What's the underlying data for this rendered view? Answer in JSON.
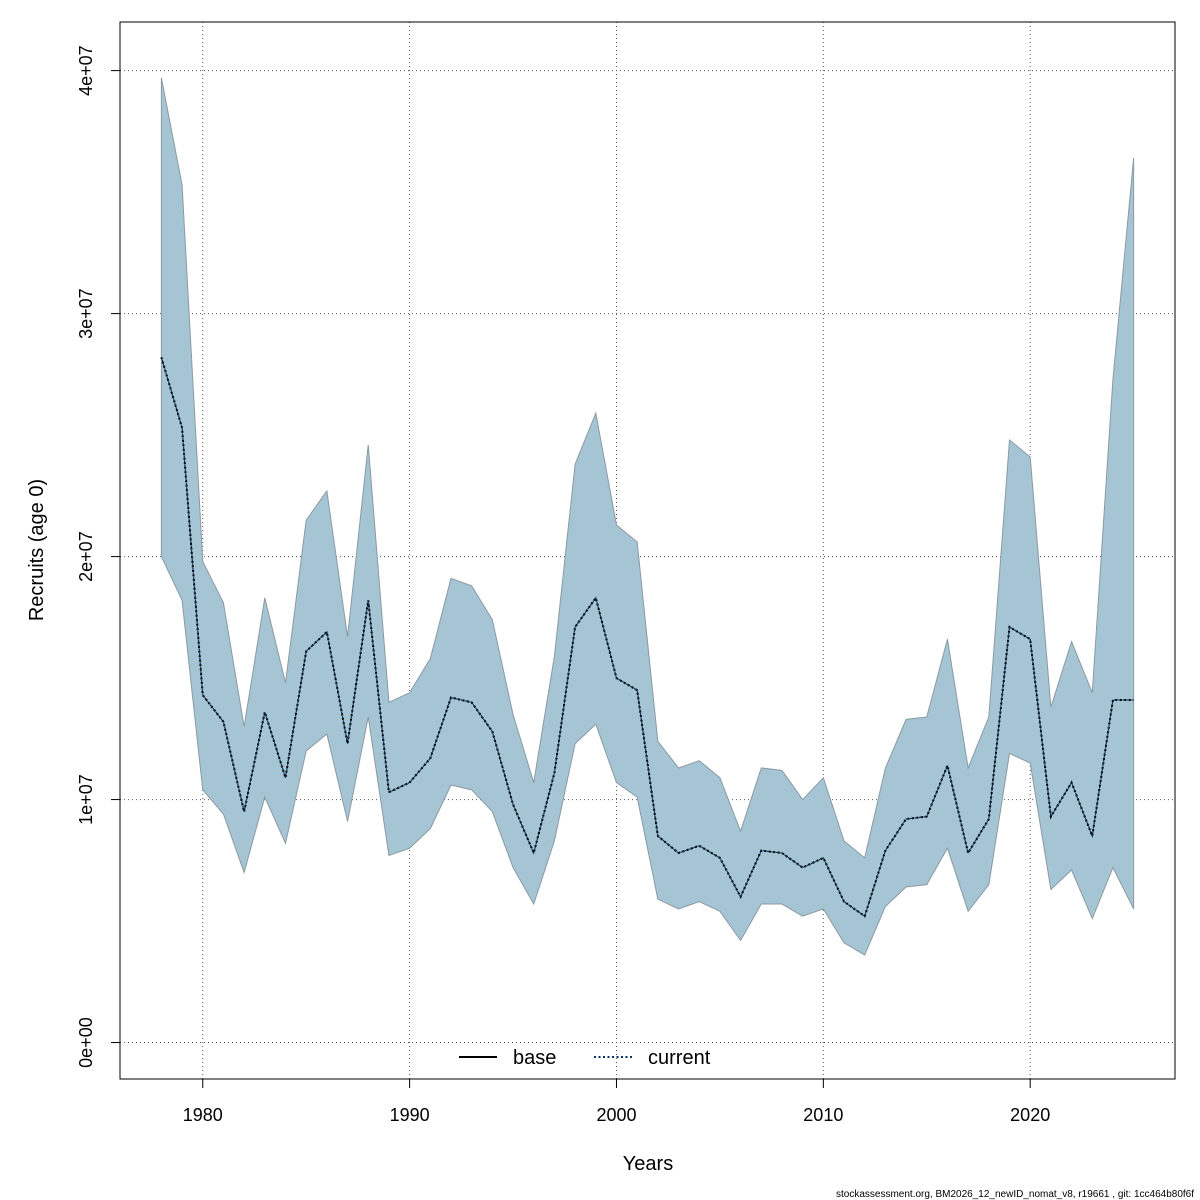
{
  "chart_data": {
    "type": "area",
    "xlabel": "Years",
    "ylabel": "Recruits (age 0)",
    "xlim": [
      1976,
      2027
    ],
    "ylim": [
      -1500000.0,
      42000000.0
    ],
    "x_ticks": [
      1980,
      1990,
      2000,
      2010,
      2020
    ],
    "x_tick_labels": [
      "1980",
      "1990",
      "2000",
      "2010",
      "2020"
    ],
    "y_ticks": [
      0,
      10000000,
      20000000,
      30000000,
      40000000
    ],
    "y_tick_labels": [
      "0e+00",
      "1e+07",
      "2e+07",
      "3e+07",
      "4e+07"
    ],
    "grid": true,
    "legend_position": "bottom",
    "colors": {
      "band_fill": "#a5c4d4",
      "band_edge": "#8c9aa2",
      "current_line": "#003366",
      "base_line": "#000000",
      "grid": "#555555"
    },
    "x": [
      1978,
      1979,
      1980,
      1981,
      1982,
      1983,
      1984,
      1985,
      1986,
      1987,
      1988,
      1989,
      1990,
      1991,
      1992,
      1993,
      1994,
      1995,
      1996,
      1997,
      1998,
      1999,
      2000,
      2001,
      2002,
      2003,
      2004,
      2005,
      2006,
      2007,
      2008,
      2009,
      2010,
      2011,
      2012,
      2013,
      2014,
      2015,
      2016,
      2017,
      2018,
      2019,
      2020,
      2021,
      2022,
      2023,
      2024,
      2025
    ],
    "series": [
      {
        "name": "current",
        "style": "dotted",
        "values": [
          28200000,
          25300000,
          14300000,
          13200000,
          9500000,
          13600000,
          10900000,
          16100000,
          16900000,
          12300000,
          18200000,
          10300000,
          10700000,
          11700000,
          14200000,
          14000000,
          12800000,
          9800000,
          7800000,
          11100000,
          17100000,
          18300000,
          15000000,
          14500000,
          8500000,
          7800000,
          8100000,
          7600000,
          6000000,
          7900000,
          7800000,
          7200000,
          7600000,
          5800000,
          5200000,
          7900000,
          9200000,
          9300000,
          11400000,
          7800000,
          9200000,
          17100000,
          16600000,
          9300000,
          10700000,
          8500000,
          14100000,
          14100000
        ]
      }
    ],
    "band": {
      "lower": [
        20000000,
        18200000,
        10400000,
        9400000,
        7000000,
        10100000,
        8200000,
        12000000,
        12700000,
        9100000,
        13400000,
        7700000,
        8000000,
        8800000,
        10600000,
        10400000,
        9500000,
        7200000,
        5700000,
        8300000,
        12300000,
        13100000,
        10700000,
        10100000,
        5900000,
        5500000,
        5800000,
        5400000,
        4200000,
        5700000,
        5700000,
        5200000,
        5500000,
        4100000,
        3600000,
        5600000,
        6400000,
        6500000,
        8000000,
        5400000,
        6500000,
        11900000,
        11500000,
        6300000,
        7100000,
        5100000,
        7200000,
        5500000
      ],
      "upper": [
        39700000,
        35300000,
        19800000,
        18100000,
        13000000,
        18300000,
        14800000,
        21500000,
        22700000,
        16700000,
        24600000,
        14000000,
        14400000,
        15800000,
        19100000,
        18800000,
        17400000,
        13500000,
        10700000,
        15900000,
        23800000,
        25900000,
        21300000,
        20600000,
        12400000,
        11300000,
        11600000,
        10900000,
        8700000,
        11300000,
        11200000,
        10000000,
        10900000,
        8300000,
        7600000,
        11300000,
        13300000,
        13400000,
        16600000,
        11300000,
        13400000,
        24800000,
        24100000,
        13800000,
        16500000,
        14400000,
        27300000,
        36400000
      ]
    },
    "legend": [
      {
        "label": "base",
        "style": "solid",
        "color": "#000000"
      },
      {
        "label": "current",
        "style": "dotted",
        "color": "#003366"
      }
    ]
  },
  "footer": "stockassessment.org, BM2026_12_newID_nomat_v8, r19661 , git: 1cc464b80f6f"
}
